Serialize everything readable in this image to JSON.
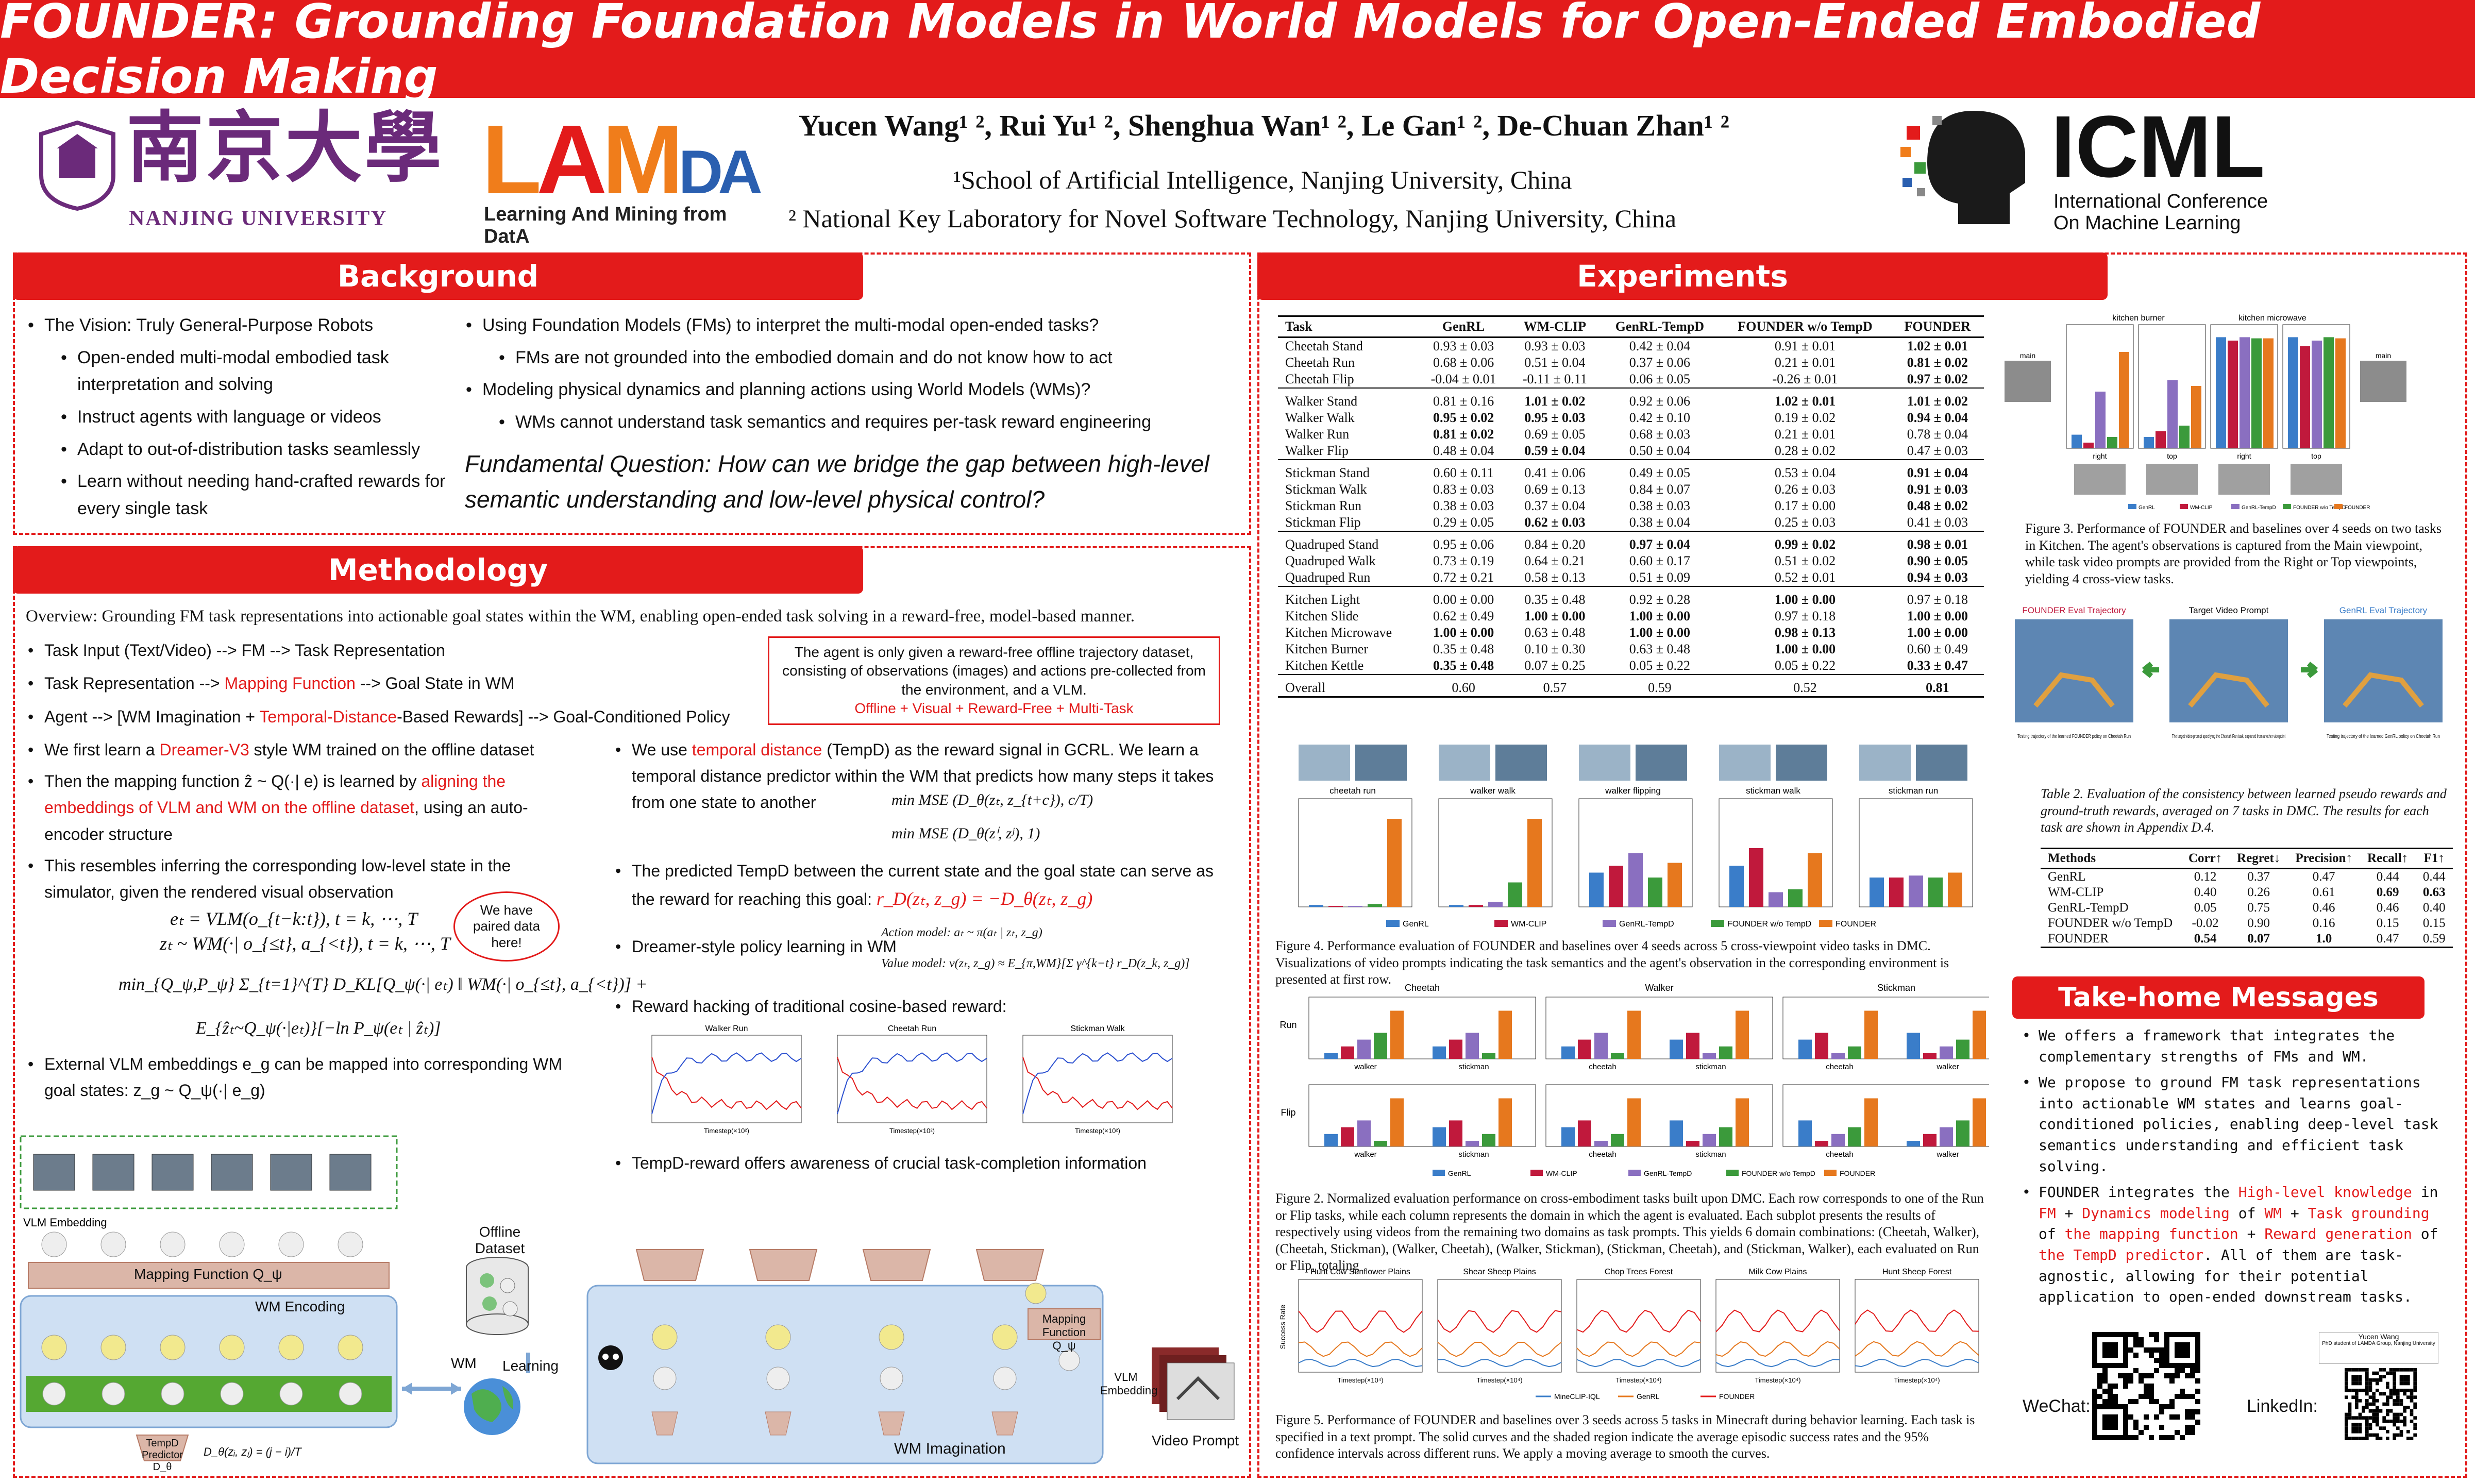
{
  "title": "FOUNDER: Grounding Foundation Models in World Models for Open-Ended Embodied Decision Making",
  "logos": {
    "nju": "NANJING UNIVERSITY",
    "nju_chinese": "南京大學",
    "lamda_l": "L",
    "lamda_a": "A",
    "lamda_m": "M",
    "lamda_da": "DA",
    "lamda_sub": "Learning And Mining from DatA",
    "icml": "ICML",
    "icml_sub1": "International Conference",
    "icml_sub2": "On Machine Learning"
  },
  "authors": "Yucen Wang¹ ², Rui Yu¹ ², Shenghua Wan¹ ², Le Gan¹ ², De-Chuan Zhan¹ ²",
  "affil1": "¹School of Artificial Intelligence, Nanjing University, China",
  "affil2": "² National Key Laboratory for Novel Software Technology, Nanjing University, China",
  "background": {
    "heading": "Background",
    "left": [
      "The Vision: Truly General-Purpose Robots",
      "Open-ended multi-modal embodied task interpretation and solving",
      "Instruct agents with language or videos",
      "Adapt to out-of-distribution tasks seamlessly",
      "Learn without needing hand-crafted rewards for every single task"
    ],
    "right": [
      "Using Foundation Models (FMs) to interpret the multi-modal open-ended tasks?",
      "FMs are not grounded into the embodied domain and do not know how to act",
      "Modeling physical dynamics and planning actions using World Models (WMs)?",
      "WMs cannot understand task semantics and requires per-task reward engineering"
    ],
    "question": "Fundamental Question: How can we bridge the gap between high-level semantic understanding and low-level physical control?"
  },
  "methodology": {
    "heading": "Methodology",
    "overview": "Overview: Grounding FM task representations into actionable goal states within the WM, enabling open-ended task solving in a reward-free, model-based manner.",
    "pipeline1": "Task Input (Text/Video) --> FM --> Task Representation",
    "pipeline2_a": "Task Representation --> ",
    "pipeline2_b": "Mapping Function",
    "pipeline2_c": " --> Goal State in WM",
    "pipeline3_a": "Agent --> [WM Imagination + ",
    "pipeline3_b": "Temporal-Distance",
    "pipeline3_c": "-Based Rewards] --> Goal-Conditioned Policy",
    "notebox": "The agent is only given a reward-free offline trajectory dataset, consisting of observations (images) and actions pre-collected from the environment, and a VLM.",
    "notebox_red": "Offline + Visual + Reward-Free + Multi-Task",
    "left_bullets": {
      "b1_a": "We first learn a ",
      "b1_b": "Dreamer-V3",
      "b1_c": " style WM trained on the offline dataset",
      "b2_a": "Then the mapping function ẑ ~ Q(·| e) is learned by ",
      "b2_b": "aligning the embeddings of VLM and WM on the offline dataset",
      "b2_c": ", using an auto-encoder structure",
      "b3": "This resembles inferring the corresponding low-level state in the simulator, given the rendered visual observation",
      "eq1": "eₜ = VLM(o_{t−k:t}), t = k, ⋯, T",
      "eq2": "zₜ ~ WM(·| o_{≤t}, a_{<t}), t = k, ⋯, T",
      "bubble": "We have paired data here!",
      "loss1": "min_{Q_ψ,P_ψ} Σ_{t=1}^{T} D_KL[Q_ψ(·| eₜ) ‖ WM(·| o_{≤t}, a_{<t})] +",
      "loss2": "E_{ẑₜ~Q_ψ(·|eₜ)}[−ln P_ψ(eₜ | ẑₜ)]",
      "b4": "External VLM embeddings e_g can be mapped into corresponding WM goal states:  z_g ~ Q_ψ(·| e_g)"
    },
    "right_bullets": {
      "r1_a": "We use ",
      "r1_b": "temporal distance",
      "r1_c": " (TempD) as the reward signal in GCRL. We learn a temporal distance predictor within the WM that predicts how many steps it takes from one state to another",
      "mse1": "min MSE (D_θ(zₜ, z_{t+c}), c/T)",
      "mse2": "min MSE (D_θ(zⁱ, zʲ), 1)",
      "r2": "The predicted TempD between the current state and the goal state can serve as the reward for reaching this goal:",
      "reward_eq": "r_D(zₜ, z_g) = −D_θ(zₜ, z_g)",
      "r3": "Dreamer-style policy learning in WM",
      "action_model": "Action model:   aₜ ~ π(aₜ | zₜ, z_g)",
      "value_model": "Value model:   v(zₜ, z_g) ≈ E_{π,WM}[Σ γ^{k−t} r_D(z_k, z_g)]",
      "r4": "Reward hacking of traditional cosine-based reward:",
      "r5": "TempD-reward offers awareness of crucial task-completion information"
    },
    "hack_plots": [
      "Walker Run",
      "Cheetah Run",
      "Stickman Walk"
    ],
    "hack_xlabel": "Timestep(×10²)",
    "diagram": {
      "vlm_embedding": "VLM Embedding",
      "mapping_fn": "Mapping Function Q_ψ",
      "wm_encoding": "WM Encoding",
      "offline_dataset": "Offline Dataset",
      "wm_label": "WM",
      "learning": "Learning",
      "wm_imagination": "WM Imagination",
      "tempd_predictor": "TempD Predictor D_θ",
      "tempd_formula": "D_θ(zᵢ, zⱼ) = (j − i)/T",
      "mapping_fn2": "Mapping Function Q_ψ",
      "vlm_embedding2": "VLM Embedding",
      "video_prompt": "Video Prompt"
    }
  },
  "experiments": {
    "heading": "Experiments",
    "table_headers": [
      "Task",
      "GenRL",
      "WM-CLIP",
      "GenRL-TempD",
      "FOUNDER w/o TempD",
      "FOUNDER"
    ],
    "table_rows": [
      [
        "Cheetah Stand",
        "0.93 ± 0.03",
        "0.93 ± 0.03",
        "0.42 ± 0.04",
        "0.91 ± 0.01",
        "1.02 ± 0.01"
      ],
      [
        "Cheetah Run",
        "0.68 ± 0.06",
        "0.51 ± 0.04",
        "0.37 ± 0.06",
        "0.21 ± 0.01",
        "0.81 ± 0.02"
      ],
      [
        "Cheetah Flip",
        "-0.04 ± 0.01",
        "-0.11 ± 0.11",
        "0.06 ± 0.05",
        "-0.26 ± 0.01",
        "0.97 ± 0.02"
      ],
      [
        "Walker Stand",
        "0.81 ± 0.16",
        "1.01 ± 0.02",
        "0.92 ± 0.06",
        "1.02 ± 0.01",
        "1.01 ± 0.02"
      ],
      [
        "Walker Walk",
        "0.95 ± 0.02",
        "0.95 ± 0.03",
        "0.42 ± 0.10",
        "0.19 ± 0.02",
        "0.94 ± 0.04"
      ],
      [
        "Walker Run",
        "0.81 ± 0.02",
        "0.69 ± 0.05",
        "0.68 ± 0.03",
        "0.21 ± 0.01",
        "0.78 ± 0.04"
      ],
      [
        "Walker Flip",
        "0.48 ± 0.04",
        "0.59 ± 0.04",
        "0.50 ± 0.04",
        "0.28 ± 0.02",
        "0.47 ± 0.03"
      ],
      [
        "Stickman Stand",
        "0.60 ± 0.11",
        "0.41 ± 0.06",
        "0.49 ± 0.05",
        "0.53 ± 0.04",
        "0.91 ± 0.04"
      ],
      [
        "Stickman Walk",
        "0.83 ± 0.03",
        "0.69 ± 0.13",
        "0.84 ± 0.07",
        "0.26 ± 0.03",
        "0.91 ± 0.03"
      ],
      [
        "Stickman Run",
        "0.38 ± 0.03",
        "0.37 ± 0.04",
        "0.38 ± 0.03",
        "0.17 ± 0.00",
        "0.48 ± 0.02"
      ],
      [
        "Stickman Flip",
        "0.29 ± 0.05",
        "0.62 ± 0.03",
        "0.38 ± 0.04",
        "0.25 ± 0.03",
        "0.41 ± 0.03"
      ],
      [
        "Quadruped Stand",
        "0.95 ± 0.06",
        "0.84 ± 0.20",
        "0.97 ± 0.04",
        "0.99 ± 0.02",
        "0.98 ± 0.01"
      ],
      [
        "Quadruped Walk",
        "0.73 ± 0.19",
        "0.64 ± 0.21",
        "0.60 ± 0.17",
        "0.51 ± 0.02",
        "0.90 ± 0.05"
      ],
      [
        "Quadruped Run",
        "0.72 ± 0.21",
        "0.58 ± 0.13",
        "0.51 ± 0.09",
        "0.52 ± 0.01",
        "0.94 ± 0.03"
      ],
      [
        "Kitchen Light",
        "0.00 ± 0.00",
        "0.35 ± 0.48",
        "0.92 ± 0.28",
        "1.00 ± 0.00",
        "0.97 ± 0.18"
      ],
      [
        "Kitchen Slide",
        "0.62 ± 0.49",
        "1.00 ± 0.00",
        "1.00 ± 0.00",
        "0.97 ± 0.18",
        "1.00 ± 0.00"
      ],
      [
        "Kitchen Microwave",
        "1.00 ± 0.00",
        "0.63 ± 0.48",
        "1.00 ± 0.00",
        "0.98 ± 0.13",
        "1.00 ± 0.00"
      ],
      [
        "Kitchen Burner",
        "0.35 ± 0.48",
        "0.10 ± 0.30",
        "0.63 ± 0.48",
        "1.00 ± 0.00",
        "0.60 ± 0.49"
      ],
      [
        "Kitchen Kettle",
        "0.35 ± 0.48",
        "0.07 ± 0.25",
        "0.05 ± 0.22",
        "0.05 ± 0.22",
        "0.33 ± 0.47"
      ],
      [
        "Overall",
        "0.60",
        "0.57",
        "0.59",
        "0.52",
        "0.81"
      ]
    ],
    "fig3_title_left": "kitchen burner",
    "fig3_title_right": "kitchen microwave",
    "fig3_main": "main",
    "fig3_right": "right",
    "fig3_top": "top",
    "fig3_caption": "Figure 3. Performance of FOUNDER and baselines over 4 seeds on two tasks in Kitchen. The agent's observations is captured from the Main viewpoint, while task video prompts are provided from the Right or Top viewpoints, yielding 4 cross-view tasks.",
    "fig4_tasks": [
      "cheetah run",
      "walker walk",
      "walker flipping",
      "stickman walk",
      "stickman run"
    ],
    "legend": [
      "GenRL",
      "WM-CLIP",
      "GenRL-TempD",
      "FOUNDER w/o TempD",
      "FOUNDER"
    ],
    "fig4_caption": "Figure 4. Performance evaluation of FOUNDER and baselines over 4 seeds across 5 cross-viewpoint video tasks in DMC. Visualizations of video prompts indicating the task semantics and the agent's observation in the corresponding environment is presented at first row.",
    "traj_titles": [
      "FOUNDER Eval Trajectory",
      "Target Video Prompt",
      "GenRL Eval Trajectory"
    ],
    "traj_notes": [
      "Testing trajectory of the learned FOUNDER policy on Cheetah Run",
      "The target video prompt specifying the Cheetah Run task, captured from another viewpoint",
      "Testing trajectory of the learned GenRL policy on Cheetah Run"
    ],
    "table2_caption": "Table 2. Evaluation of the consistency between learned pseudo rewards and ground-truth rewards, averaged on 7 tasks in DMC. The results for each task are shown in Appendix D.4.",
    "table2_headers": [
      "Methods",
      "Corr↑",
      "Regret↓",
      "Precision↑",
      "Recall↑",
      "F1↑"
    ],
    "table2_rows": [
      [
        "GenRL",
        "0.12",
        "0.37",
        "0.47",
        "0.44",
        "0.44"
      ],
      [
        "WM-CLIP",
        "0.40",
        "0.26",
        "0.61",
        "0.69",
        "0.63"
      ],
      [
        "GenRL-TempD",
        "0.05",
        "0.75",
        "0.46",
        "0.46",
        "0.40"
      ],
      [
        "FOUNDER w/o TempD",
        "-0.02",
        "0.90",
        "0.16",
        "0.15",
        "0.15"
      ],
      [
        "FOUNDER",
        "0.54",
        "0.07",
        "1.0",
        "0.47",
        "0.59"
      ]
    ],
    "fig2_cols": [
      "Cheetah",
      "Walker",
      "Stickman"
    ],
    "fig2_rows": [
      "Run",
      "Flip"
    ],
    "fig2_xlabels": [
      [
        "walker",
        "stickman"
      ],
      [
        "cheetah",
        "stickman"
      ],
      [
        "cheetah",
        "walker"
      ]
    ],
    "fig2_caption": "Figure 2. Normalized evaluation performance on cross-embodiment tasks built upon DMC. Each row corresponds to one of the Run or Flip tasks, while each column represents the domain in which the agent is evaluated. Each subplot presents the results of respectively using videos from the remaining two domains as task prompts. This yields 6 domain combinations: (Cheetah, Walker), (Cheetah, Stickman), (Walker, Cheetah), (Walker, Stickman), (Stickman, Cheetah), and (Stickman, Walker), each evaluated on Run or Flip, totaling",
    "fig5_titles": [
      "Hunt Cow Sunflower Plains",
      "Shear Sheep Plains",
      "Chop Trees Forest",
      "Milk Cow Plains",
      "Hunt Sheep Forest"
    ],
    "fig5_ylabel": "Success Rate",
    "fig5_xlabel": "Timestep(×10⁴)",
    "fig5_legend": [
      "MineCLIP-IQL",
      "GenRL",
      "FOUNDER"
    ],
    "fig5_caption": "Figure 5. Performance of FOUNDER and baselines over 3 seeds across 5 tasks in Minecraft during behavior learning. Each task is specified in a text prompt. The solid curves and the shaded region indicate the average episodic success rates and the 95% confidence intervals across different runs. We apply a moving average to smooth the curves."
  },
  "takehome": {
    "heading": "Take-home Messages",
    "m1": "We offers a framework that integrates the complementary strengths of FMs and WM.",
    "m2": "We propose to ground FM task representations into actionable WM states and learns goal-conditioned policies, enabling deep-level task semantics understanding and efficient task solving.",
    "m3_a": "FOUNDER integrates the ",
    "m3_b": "High-level knowledge",
    "m3_c": " in ",
    "m3_d": "FM",
    "m3_e": " + ",
    "m3_f": "Dynamics modeling",
    "m3_g": " of ",
    "m3_h": "WM",
    "m3_i": " + ",
    "m3_j": "Task grounding",
    "m3_k": " of ",
    "m3_l": "the mapping function",
    "m3_m": " + ",
    "m3_n": "Reward generation",
    "m3_o": " of ",
    "m3_p": "the TempD predictor",
    "m3_q": ". All of them are task-agnostic, allowing for their potential application to open-ended downstream tasks.",
    "wechat": "WeChat:",
    "linkedin": "LinkedIn:",
    "card_name": "Yucen Wang",
    "card_sub": "PhD student of LAMDA Group, Nanjing University"
  },
  "colors": {
    "accent": "#e31b1b",
    "genrl": "#3a7dc9",
    "wmclip": "#c0193c",
    "genrl_tempd": "#8a6fc0",
    "founder_wo": "#3b9a3b",
    "founder": "#e6781e"
  }
}
